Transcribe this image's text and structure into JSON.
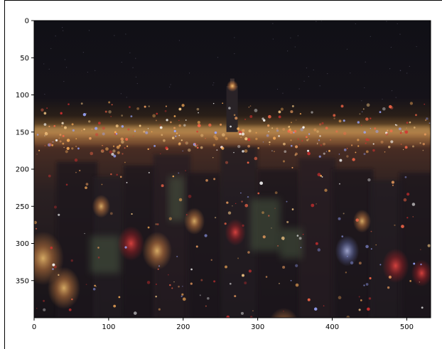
{
  "chart_data": {
    "type": "image",
    "title": "",
    "xlabel": "",
    "ylabel": "",
    "x_ticks": [
      0,
      100,
      200,
      300,
      400,
      500
    ],
    "y_ticks": [
      0,
      50,
      100,
      150,
      200,
      250,
      300,
      350
    ],
    "x_tick_labels": [
      "0",
      "100",
      "200",
      "300",
      "400",
      "500"
    ],
    "y_tick_labels": [
      "0",
      "50",
      "100",
      "150",
      "200",
      "250",
      "300",
      "350"
    ],
    "xlim": [
      0,
      532
    ],
    "ylim": [
      400,
      0
    ],
    "y_axis_inverted": true,
    "grid": false,
    "image_content": "night-city-skyline",
    "colors": {
      "sky_top": "#101016",
      "sky_mid": "#1a161a",
      "horizon_glow": "#b88a4a",
      "city_dark": "#1b171d",
      "light_warm": "#ffb15a",
      "light_red": "#d83030",
      "light_blue": "#9aa7ff",
      "light_green": "#6f8d5d"
    }
  }
}
